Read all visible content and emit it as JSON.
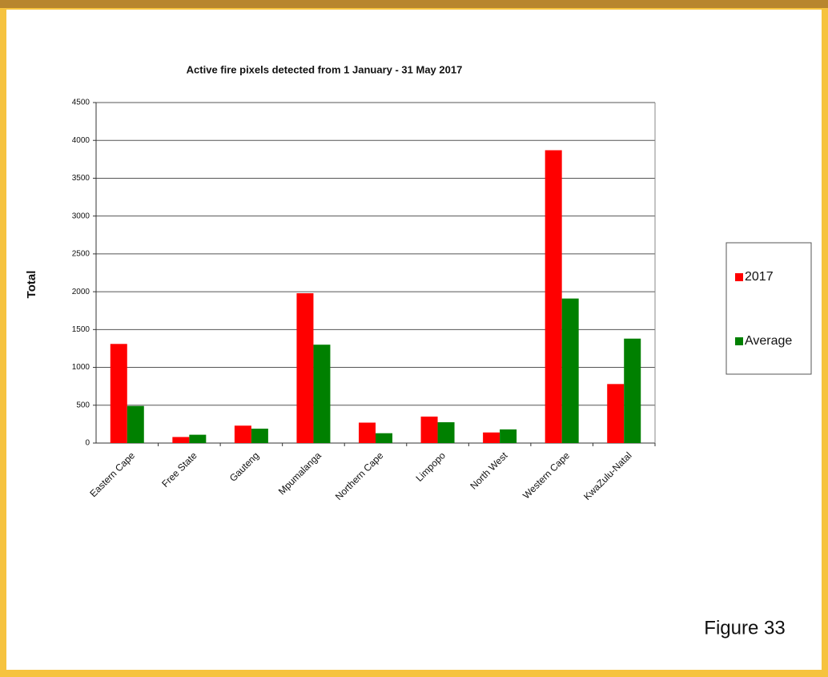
{
  "chart_data": {
    "type": "bar",
    "title": "Active fire pixels detected from 1 January - 31 May 2017",
    "y_label": "Total",
    "categories": [
      "Eastern Cape",
      "Free State",
      "Gauteng",
      "Mpumalanga",
      "Northern Cape",
      "Limpopo",
      "North West",
      "Western Cape",
      "KwaZulu-Natal"
    ],
    "series": [
      {
        "name": "2017",
        "color": "#ff0000",
        "values": [
          1310,
          80,
          230,
          1980,
          270,
          350,
          140,
          3870,
          780
        ]
      },
      {
        "name": "Average",
        "color": "#008000",
        "values": [
          490,
          110,
          190,
          1300,
          130,
          275,
          180,
          1910,
          1380
        ]
      }
    ],
    "ylim": [
      0,
      4500
    ],
    "yticks": [
      0,
      500,
      1000,
      1500,
      2000,
      2500,
      3000,
      3500,
      4000,
      4500
    ],
    "grid": true,
    "legend": "right",
    "caption": "Figure 33"
  }
}
